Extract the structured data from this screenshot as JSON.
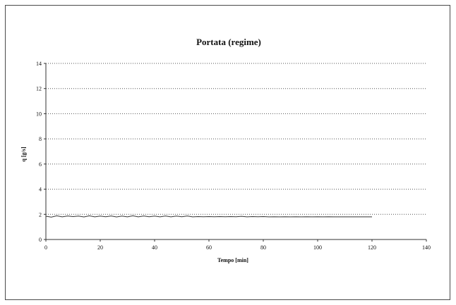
{
  "chart_data": {
    "type": "line",
    "title": "Portata (regime)",
    "xlabel": "Tempo [min]",
    "ylabel": "q [g/s]",
    "xlim": [
      0,
      140
    ],
    "ylim": [
      0,
      14
    ],
    "xticks": [
      0,
      20,
      40,
      60,
      80,
      100,
      120,
      140
    ],
    "yticks": [
      0,
      2,
      4,
      6,
      8,
      10,
      12,
      14
    ],
    "grid": "horizontal-dotted",
    "legend": "none",
    "series": [
      {
        "color": "#333333",
        "x": [
          0,
          2,
          4,
          6,
          8,
          10,
          12,
          14,
          16,
          18,
          20,
          22,
          24,
          26,
          28,
          30,
          32,
          34,
          36,
          38,
          40,
          42,
          44,
          46,
          48,
          50,
          52,
          54,
          56,
          58,
          60,
          62,
          64,
          66,
          68,
          70,
          72,
          74,
          76,
          78,
          80,
          82,
          84,
          86,
          88,
          90,
          92,
          94,
          96,
          98,
          100,
          102,
          104,
          106,
          108,
          110,
          112,
          114,
          116,
          118,
          120
        ],
        "y": [
          1.85,
          1.78,
          1.88,
          1.8,
          1.87,
          1.82,
          1.86,
          1.79,
          1.88,
          1.8,
          1.86,
          1.81,
          1.87,
          1.79,
          1.86,
          1.8,
          1.88,
          1.8,
          1.87,
          1.81,
          1.86,
          1.8,
          1.87,
          1.8,
          1.86,
          1.81,
          1.87,
          1.8,
          1.82,
          1.81,
          1.82,
          1.81,
          1.82,
          1.81,
          1.82,
          1.81,
          1.84,
          1.8,
          1.82,
          1.81,
          1.82,
          1.8,
          1.81,
          1.8,
          1.81,
          1.8,
          1.81,
          1.8,
          1.81,
          1.8,
          1.81,
          1.8,
          1.81,
          1.8,
          1.8,
          1.8,
          1.8,
          1.8,
          1.8,
          1.8,
          1.8
        ]
      }
    ]
  }
}
